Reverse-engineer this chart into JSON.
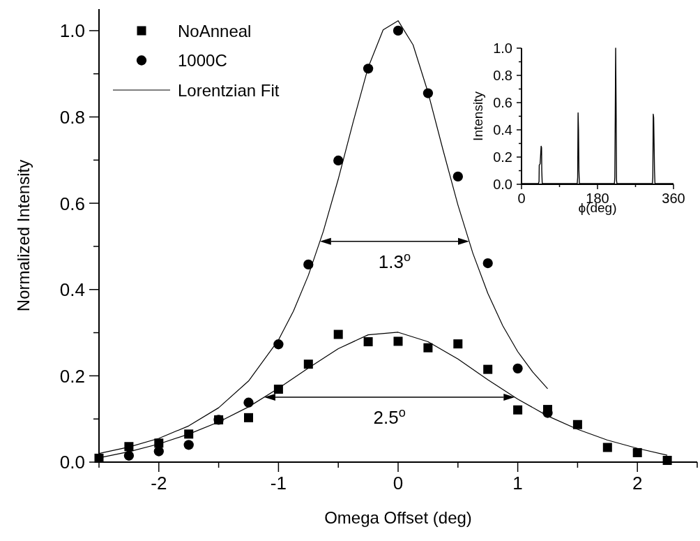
{
  "chart_data": [
    {
      "type": "scatter",
      "xlabel": "Omega Offset (deg)",
      "ylabel": "Normalized Intensity",
      "xlim": [
        -2.5,
        2.5
      ],
      "ylim": [
        0,
        1.05
      ],
      "xticks": [
        {
          "value": -2.5,
          "label": null
        },
        -2,
        {
          "value": -1.5,
          "label": null
        },
        -1,
        {
          "value": -0.5,
          "label": null
        },
        0,
        {
          "value": 0.5,
          "label": null
        },
        1,
        {
          "value": 1.5,
          "label": null
        },
        2,
        {
          "value": 2.5,
          "label": null
        }
      ],
      "yticks": [
        {
          "value": 0,
          "label": "0.0"
        },
        {
          "value": 0.1,
          "label": null
        },
        {
          "value": 0.2,
          "label": "0.2"
        },
        {
          "value": 0.3,
          "label": null
        },
        {
          "value": 0.4,
          "label": "0.4"
        },
        {
          "value": 0.5,
          "label": null
        },
        {
          "value": 0.6,
          "label": "0.6"
        },
        {
          "value": 0.7,
          "label": null
        },
        {
          "value": 0.8,
          "label": "0.8"
        },
        {
          "value": 0.9,
          "label": null
        },
        {
          "value": 1.0,
          "label": "1.0"
        }
      ],
      "legend": "top left",
      "series": [
        {
          "name": "NoAnneal",
          "marker": "square",
          "color": "#000000",
          "x": [
            -2.5,
            -2.25,
            -2.0,
            -1.75,
            -1.5,
            -1.25,
            -1.0,
            -0.75,
            -0.5,
            -0.25,
            0,
            0.25,
            0.5,
            0.75,
            1.0,
            1.25,
            1.5,
            1.75,
            2.0,
            2.25
          ],
          "values": [
            0.009,
            0.036,
            0.044,
            0.065,
            0.098,
            0.103,
            0.169,
            0.227,
            0.296,
            0.279,
            0.28,
            0.265,
            0.274,
            0.215,
            0.121,
            0.122,
            0.087,
            0.034,
            0.022,
            0.004
          ]
        },
        {
          "name": "1000C",
          "marker": "circle",
          "color": "#000000",
          "x": [
            -2.25,
            -2.0,
            -1.75,
            -1.5,
            -1.25,
            -1.0,
            -0.75,
            -0.5,
            -0.25,
            0,
            0.25,
            0.5,
            0.75,
            1.0,
            1.25
          ],
          "values": [
            0.015,
            0.025,
            0.04,
            0.098,
            0.138,
            0.273,
            0.458,
            0.699,
            0.912,
            1.0,
            0.855,
            0.662,
            0.461,
            0.217,
            0.114
          ]
        },
        {
          "name": "Lorentzian Fit",
          "type": "line",
          "marker": "none",
          "line_style": "solid",
          "color": "#000000",
          "x": [
            -2.5,
            -2.25,
            -2.0,
            -1.75,
            -1.5,
            -1.25,
            -1.0,
            -0.875,
            -0.75,
            -0.625,
            -0.5,
            -0.375,
            -0.25,
            -0.125,
            0,
            0.125,
            0.25,
            0.375,
            0.5,
            0.625,
            0.75,
            0.875,
            1.0,
            1.125,
            1.25
          ],
          "values": [
            0.02,
            0.035,
            0.055,
            0.084,
            0.126,
            0.188,
            0.283,
            0.35,
            0.433,
            0.535,
            0.656,
            0.789,
            0.915,
            1.002,
            1.023,
            0.967,
            0.857,
            0.724,
            0.596,
            0.484,
            0.391,
            0.316,
            0.256,
            0.209,
            0.17
          ]
        },
        {
          "type": "line",
          "marker": "none",
          "line_style": "solid",
          "color": "#000000",
          "x": [
            -2.5,
            -2.25,
            -2.0,
            -1.75,
            -1.5,
            -1.25,
            -1.0,
            -0.75,
            -0.5,
            -0.25,
            0,
            0.25,
            0.5,
            0.75,
            1.0,
            1.25,
            1.5,
            1.75,
            2.0,
            2.25
          ],
          "values": [
            0.01,
            0.024,
            0.042,
            0.065,
            0.093,
            0.128,
            0.171,
            0.218,
            0.263,
            0.295,
            0.301,
            0.279,
            0.239,
            0.191,
            0.146,
            0.107,
            0.076,
            0.051,
            0.032,
            0.016
          ]
        }
      ],
      "annotations": [
        "1.3$^{o}$",
        "2.5$^{o}$"
      ]
    },
    {
      "type": "line",
      "xlabel": "ϕ(deg)",
      "ylabel": "Intensity",
      "xlim": [
        0,
        360
      ],
      "ylim": [
        0,
        1.0
      ],
      "xticks": [
        0,
        {
          "value": 90,
          "label": null
        },
        180,
        {
          "value": 270,
          "label": null
        },
        360
      ],
      "yticks": [
        {
          "value": 0,
          "label": "0.0"
        },
        {
          "value": 0.1,
          "label": null
        },
        {
          "value": 0.2,
          "label": "0.2"
        },
        {
          "value": 0.3,
          "label": null
        },
        {
          "value": 0.4,
          "label": "0.4"
        },
        {
          "value": 0.5,
          "label": null
        },
        {
          "value": 0.6,
          "label": "0.6"
        },
        {
          "value": 0.7,
          "label": null
        },
        {
          "value": 0.8,
          "label": "0.8"
        },
        {
          "value": 0.9,
          "label": null
        },
        {
          "value": 1.0,
          "label": "1.0"
        }
      ],
      "series": [
        {
          "color": "#000000",
          "x": [
            0,
            40,
            41.5,
            42,
            44,
            45,
            46.5,
            47.5,
            48,
            49,
            50,
            132,
            133,
            134,
            135,
            136,
            137,
            138,
            220,
            221,
            222,
            223,
            224,
            225,
            226,
            310,
            311,
            312,
            313,
            314,
            315,
            316,
            317,
            360
          ],
          "values": [
            0.005,
            0.005,
            0.02,
            0.14,
            0.15,
            0.2,
            0.28,
            0.27,
            0.1,
            0.01,
            0.005,
            0.005,
            0.05,
            0.525,
            0.4,
            0.1,
            0.01,
            0.005,
            0.005,
            0.05,
            0.5,
            1.0,
            0.6,
            0.03,
            0.005,
            0.005,
            0.05,
            0.515,
            0.49,
            0.3,
            0.1,
            0.01,
            0.005,
            0.005
          ]
        }
      ]
    }
  ]
}
